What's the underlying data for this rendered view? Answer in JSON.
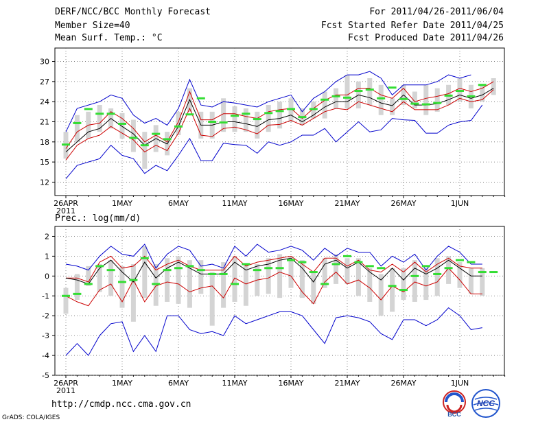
{
  "header": {
    "left": [
      "DERF/NCC/BCC Monthly Forecast",
      "Member Size=40",
      "Mean Surf. Temp.: °C"
    ],
    "right": [
      "For 2011/04/26-2011/06/04",
      "Fcst Started Refer Date 2011/04/25",
      "Fcst Produced Date 2011/04/26"
    ]
  },
  "footer": {
    "url": "http://cmdp.ncc.cma.gov.cn",
    "credit": "GrADS: COLA/IGES",
    "logo1": "BCC",
    "logo2": "NCC"
  },
  "colors": {
    "max_min": "#0000cc",
    "spread": "#cc0000",
    "mean": "#000000",
    "box": "#d4d4d4",
    "obs": "#33dd33"
  },
  "chart_data": [
    {
      "type": "line",
      "title": "Mean Surf. Temp.: °C",
      "xlabels": [
        "26APR",
        "1MAY",
        "6MAY",
        "11MAY",
        "16MAY",
        "21MAY",
        "26MAY",
        "1JUN"
      ],
      "xlabel_year": "2011",
      "ylim": [
        10,
        32
      ],
      "yticks": [
        12,
        15,
        18,
        21,
        24,
        27,
        30
      ],
      "series": [
        {
          "name": "max",
          "values": [
            19.5,
            23,
            23.5,
            24,
            25,
            24.5,
            22,
            20.8,
            21.5,
            20.5,
            23,
            27.3,
            23.5,
            23.2,
            24,
            23.8,
            23.5,
            23.2,
            24,
            24.5,
            25,
            22.5,
            24.5,
            25.5,
            27,
            28,
            28,
            28.5,
            27.5,
            25,
            26.5,
            26.5,
            26.5,
            27,
            28,
            27.5,
            28
          ]
        },
        {
          "name": "upper",
          "values": [
            17,
            19.5,
            20.5,
            20.8,
            22.5,
            21.5,
            20,
            18,
            19,
            18,
            21,
            25.5,
            21.3,
            21.3,
            22.2,
            22.2,
            21.8,
            21.5,
            22.5,
            22.8,
            23,
            21.5,
            23,
            24.2,
            25,
            25,
            26,
            26,
            25,
            24.5,
            26,
            24,
            24.5,
            24.8,
            25.2,
            26,
            25.5,
            26,
            27
          ]
        },
        {
          "name": "mean",
          "values": [
            16.5,
            18,
            19.5,
            20,
            21.5,
            20.3,
            19.2,
            17.5,
            18.5,
            17.7,
            20.3,
            24.3,
            20.5,
            20.5,
            21,
            21,
            20.7,
            20.3,
            21.3,
            21.5,
            22,
            21,
            22,
            23.2,
            24,
            24,
            25,
            24.6,
            23.8,
            23.4,
            25,
            23.5,
            23.5,
            23.7,
            24.3,
            25,
            24.5,
            25,
            26
          ]
        },
        {
          "name": "lower",
          "values": [
            15.3,
            17.5,
            18.5,
            19,
            20.3,
            19.3,
            18.3,
            16.5,
            17.5,
            16.7,
            19.3,
            23,
            19,
            18.8,
            20,
            20.2,
            19.8,
            19.2,
            20.5,
            20.6,
            21.2,
            20.5,
            21.5,
            22.5,
            23,
            22.8,
            24,
            23.5,
            23,
            22.5,
            24,
            22.8,
            22.8,
            22.8,
            23.5,
            24.5,
            24,
            24.3,
            25.8
          ]
        },
        {
          "name": "min",
          "values": [
            12.5,
            14.5,
            15,
            15.5,
            17.5,
            16,
            15.5,
            13.3,
            14.5,
            13.7,
            16,
            18.5,
            15.2,
            15.2,
            17.8,
            17.6,
            17.5,
            16.3,
            18,
            17.5,
            18,
            19,
            19,
            20,
            18,
            19.5,
            21,
            19.5,
            19.8,
            21.5,
            21.3,
            21.2,
            19.3,
            19.3,
            20.5,
            21,
            21.2,
            23.5
          ]
        },
        {
          "name": "obs",
          "values": [
            17.6,
            20.8,
            22.9,
            22.2,
            22.2,
            20.7,
            18.6,
            17.5,
            19.2,
            18.4,
            20.3,
            22.1,
            24.5,
            21,
            20.9,
            21.9,
            22.2,
            21.4,
            22.3,
            22.6,
            22.9,
            21.7,
            22.9,
            24.3,
            24.8,
            24.6,
            25.6,
            25.8,
            24.5,
            26.1,
            24.4,
            23.7,
            23.6,
            23.8,
            24.9,
            25.6,
            24.8,
            26.5
          ]
        },
        {
          "name": "box_hi",
          "values": [
            19.5,
            22,
            22.5,
            23.5,
            23,
            22.3,
            21.3,
            19.5,
            20.5,
            19.5,
            22.5,
            26,
            22.5,
            22.5,
            24.5,
            23.3,
            23,
            22.5,
            23.5,
            24,
            24.5,
            23,
            24,
            25.5,
            26,
            28,
            27,
            27.5,
            26.5,
            24.5,
            26.5,
            25.5,
            26.5,
            26,
            26.5,
            27.5,
            26.5,
            26.5,
            27.5
          ]
        },
        {
          "name": "box_lo",
          "values": [
            15.5,
            18,
            18.5,
            19.5,
            20,
            18.5,
            16.5,
            14,
            16.5,
            16,
            19,
            22.5,
            18.5,
            18.5,
            19.5,
            19.5,
            19.5,
            18.5,
            19.5,
            20,
            21,
            20.5,
            21.5,
            21.5,
            23,
            23,
            23,
            23.5,
            22,
            22,
            23.5,
            23,
            22,
            22.5,
            23.5,
            24,
            23,
            24,
            25
          ]
        }
      ]
    },
    {
      "type": "line",
      "title": "Prec.: log(mm/d)",
      "xlabels": [
        "26APR",
        "1MAY",
        "6MAY",
        "11MAY",
        "16MAY",
        "21MAY",
        "26MAY",
        "1JUN"
      ],
      "xlabel_year": "2011",
      "ylim": [
        -5,
        2.5
      ],
      "yticks": [
        -5,
        -4,
        -3,
        -2,
        -1,
        0,
        1,
        2
      ],
      "series": [
        {
          "name": "max",
          "values": [
            0.6,
            0.5,
            0.3,
            1,
            1.5,
            1.1,
            1,
            1.6,
            0.4,
            1.1,
            1.5,
            1.3,
            0.5,
            0.6,
            0.4,
            1.5,
            1,
            1.6,
            1.2,
            1.3,
            1.5,
            1.3,
            0.8,
            1.4,
            1,
            1.4,
            1.2,
            1.2,
            0.5,
            1,
            0.7,
            1.1,
            0.3,
            1,
            1.5,
            1.2,
            0.6,
            0.6
          ]
        },
        {
          "name": "upper",
          "values": [
            -0.1,
            -0.1,
            -0.3,
            0.7,
            1,
            0.4,
            0.5,
            1,
            0.3,
            0.6,
            0.8,
            0.5,
            0.3,
            0.3,
            0.3,
            1,
            0.5,
            0.7,
            0.8,
            0.9,
            1,
            0.6,
            0.2,
            0.9,
            0.9,
            0.5,
            0.8,
            0.3,
            0.2,
            0.6,
            0.2,
            0.7,
            0.2,
            0.6,
            0.9,
            0.5,
            0.4,
            0.4
          ]
        },
        {
          "name": "mean",
          "values": [
            -0.1,
            -0.2,
            -0.4,
            0.4,
            0.8,
            0.2,
            -0.3,
            0.7,
            -0.1,
            0.4,
            0.7,
            0.4,
            0.1,
            0.1,
            0.1,
            0.7,
            0.3,
            0.5,
            0.6,
            0.8,
            0.9,
            0.4,
            -0.3,
            0.6,
            0.8,
            0.4,
            0.7,
            0.2,
            -0.2,
            0.4,
            -0.2,
            0.4,
            0.1,
            0.4,
            0.8,
            0.4,
            0,
            0
          ]
        },
        {
          "name": "lower",
          "values": [
            -1,
            -1.3,
            -1.5,
            -0.7,
            -0.4,
            -1.3,
            -0.2,
            -1.3,
            -0.5,
            -0.3,
            -0.4,
            -0.8,
            -0.6,
            -0.5,
            -1.1,
            -0.1,
            -0.4,
            -0.2,
            -0.1,
            0.2,
            0,
            -0.8,
            -1.4,
            -0.3,
            0.2,
            -0.4,
            -0.2,
            -0.6,
            -1.2,
            -0.5,
            -0.8,
            -0.3,
            -0.5,
            -0.3,
            0.4,
            -0.2,
            -0.9,
            -0.9
          ]
        },
        {
          "name": "min",
          "values": [
            -4,
            -3.4,
            -4,
            -3,
            -2.4,
            -2.3,
            -3.8,
            -3,
            -3.8,
            -2,
            -2,
            -2.7,
            -2.9,
            -2.8,
            -3,
            -2,
            -2.4,
            -2.2,
            -2,
            -1.8,
            -1.8,
            -2,
            -2.7,
            -3.4,
            -2.1,
            -2,
            -2.1,
            -2.3,
            -2.9,
            -3.2,
            -2.2,
            -2.2,
            -2.5,
            -2.2,
            -1.6,
            -2,
            -2.7,
            -2.6
          ]
        },
        {
          "name": "obs",
          "values": [
            -1,
            -0.9,
            -0.4,
            0.5,
            0.3,
            -0.3,
            -0.2,
            0.9,
            -0.4,
            0.3,
            0.4,
            0.5,
            0.3,
            0.1,
            0.1,
            -0.4,
            0.6,
            0.3,
            0.4,
            0.4,
            0.8,
            0.7,
            0.2,
            -0.4,
            0.6,
            1,
            0.7,
            0.5,
            0.4,
            -0.5,
            -0.7,
            0,
            0.5,
            0.1,
            0.4,
            0.8,
            0.7,
            0.2,
            0.2
          ]
        },
        {
          "name": "box_hi",
          "values": [
            -0.6,
            0.1,
            0.5,
            0.6,
            0.8,
            0.5,
            0.6,
            1.5,
            0.6,
            0.9,
            1,
            0.8,
            0.8,
            0.2,
            0.7,
            1,
            0.6,
            0.6,
            0.9,
            1.1,
            1,
            0.8,
            0.2,
            0.9,
            1.1,
            0.9,
            0.9,
            0.4,
            0.1,
            0.4,
            0.4,
            0.8,
            0.4,
            0.9,
            1,
            0.7,
            0.4,
            0.4
          ]
        },
        {
          "name": "box_lo",
          "values": [
            -1.9,
            -1.2,
            -0.5,
            -0.8,
            -1,
            -1.6,
            -2.3,
            -1.1,
            -1.5,
            -1.3,
            -1.4,
            -1.6,
            -0.9,
            -2.5,
            -1.6,
            -1.3,
            -1.5,
            -1,
            -0.9,
            -1.1,
            -0.6,
            -1.1,
            -1.4,
            -0.6,
            -0.4,
            -0.4,
            -1,
            -1.3,
            -2,
            -1.8,
            -1.2,
            -1.3,
            -1.2,
            -1,
            -0.4,
            -0.6,
            -0.9,
            -1
          ]
        }
      ]
    }
  ]
}
